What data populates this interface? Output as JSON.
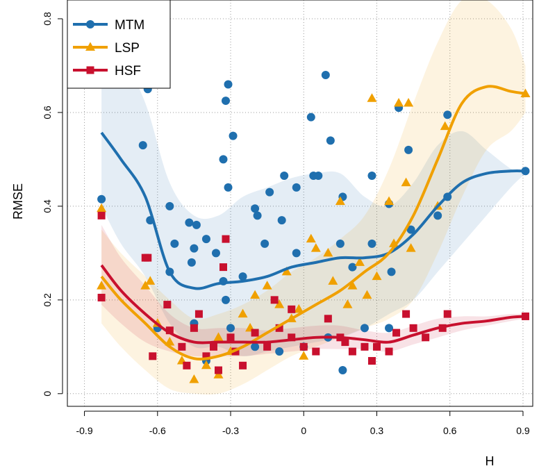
{
  "chart_data": {
    "type": "scatter",
    "x_label": "H",
    "y_label": "RMSE",
    "xlim": [
      -0.97,
      0.94
    ],
    "ylim": [
      -0.027,
      0.84
    ],
    "xticks": [
      -0.9,
      -0.6,
      -0.3,
      0,
      0.3,
      0.6,
      0.9
    ],
    "yticks": [
      0,
      0.2,
      0.4,
      0.6,
      0.8
    ],
    "grid": true,
    "legend": "top-left",
    "series": [
      {
        "name": "MTM",
        "color": "#1f6fae",
        "marker": "circle",
        "x": [
          -0.83,
          -0.66,
          -0.64,
          -0.63,
          -0.6,
          -0.55,
          -0.53,
          -0.55,
          -0.47,
          -0.44,
          -0.45,
          -0.46,
          -0.4,
          -0.36,
          -0.33,
          -0.32,
          -0.31,
          -0.31,
          -0.29,
          -0.33,
          -0.32,
          -0.2,
          -0.19,
          -0.16,
          -0.14,
          -0.08,
          -0.09,
          -0.03,
          0.03,
          0.04,
          0.06,
          0.09,
          0.11,
          0.16,
          0.15,
          0.28,
          0.28,
          0.35,
          0.39,
          0.43,
          0.44,
          0.55,
          0.59,
          0.59,
          0.91,
          -0.45,
          -0.4,
          -0.3,
          -0.2,
          -0.1,
          0.0,
          0.1,
          0.16,
          0.25,
          0.35,
          -0.25,
          0.2,
          -0.03,
          0.36
        ],
        "values": [
          0.415,
          0.53,
          0.65,
          0.37,
          0.14,
          0.4,
          0.32,
          0.26,
          0.365,
          0.36,
          0.31,
          0.28,
          0.33,
          0.3,
          0.5,
          0.625,
          0.66,
          0.44,
          0.55,
          0.24,
          0.2,
          0.395,
          0.38,
          0.32,
          0.43,
          0.465,
          0.37,
          0.44,
          0.59,
          0.465,
          0.465,
          0.68,
          0.54,
          0.42,
          0.32,
          0.465,
          0.32,
          0.405,
          0.61,
          0.52,
          0.35,
          0.38,
          0.595,
          0.42,
          0.475,
          0.15,
          0.07,
          0.14,
          0.1,
          0.09,
          0.1,
          0.12,
          0.05,
          0.14,
          0.14,
          0.25,
          0.27,
          0.3,
          0.26
        ],
        "trend": {
          "x": [
            -0.83,
            -0.75,
            -0.65,
            -0.55,
            -0.45,
            -0.35,
            -0.25,
            -0.15,
            -0.05,
            0.05,
            0.15,
            0.25,
            0.35,
            0.45,
            0.55,
            0.65,
            0.75,
            0.85,
            0.91
          ],
          "values": [
            0.557,
            0.5,
            0.42,
            0.26,
            0.225,
            0.235,
            0.24,
            0.25,
            0.27,
            0.28,
            0.29,
            0.29,
            0.3,
            0.34,
            0.4,
            0.45,
            0.47,
            0.475,
            0.475
          ],
          "lower": [
            0.4,
            0.32,
            0.25,
            0.15,
            0.1,
            0.1,
            0.08,
            0.09,
            0.1,
            0.11,
            0.12,
            0.14,
            0.17,
            0.2,
            0.26,
            0.32,
            0.38,
            0.44,
            0.47
          ],
          "upper": [
            0.75,
            0.72,
            0.62,
            0.45,
            0.38,
            0.38,
            0.42,
            0.44,
            0.46,
            0.47,
            0.47,
            0.42,
            0.4,
            0.45,
            0.53,
            0.56,
            0.52,
            0.48,
            0.47
          ]
        }
      },
      {
        "name": "LSP",
        "color": "#f0a000",
        "marker": "triangle",
        "x": [
          -0.83,
          -0.83,
          -0.65,
          -0.63,
          -0.6,
          -0.55,
          -0.5,
          -0.45,
          -0.4,
          -0.35,
          -0.3,
          -0.25,
          -0.22,
          -0.2,
          -0.15,
          -0.1,
          -0.05,
          -0.07,
          0.0,
          0.03,
          0.05,
          0.1,
          0.12,
          0.15,
          0.2,
          0.23,
          0.28,
          0.3,
          0.35,
          0.37,
          0.39,
          0.42,
          0.43,
          0.44,
          0.55,
          0.58,
          0.91,
          0.26,
          0.18,
          -0.35,
          -0.02
        ],
        "values": [
          0.395,
          0.23,
          0.23,
          0.24,
          0.15,
          0.11,
          0.07,
          0.03,
          0.06,
          0.04,
          0.09,
          0.17,
          0.14,
          0.21,
          0.23,
          0.19,
          0.16,
          0.26,
          0.08,
          0.33,
          0.31,
          0.3,
          0.24,
          0.41,
          0.23,
          0.28,
          0.63,
          0.25,
          0.41,
          0.32,
          0.62,
          0.45,
          0.62,
          0.31,
          0.4,
          0.57,
          0.64,
          0.21,
          0.19,
          0.12,
          0.18
        ],
        "trend": {
          "x": [
            -0.83,
            -0.75,
            -0.65,
            -0.55,
            -0.45,
            -0.35,
            -0.25,
            -0.15,
            -0.05,
            0.05,
            0.15,
            0.25,
            0.35,
            0.45,
            0.55,
            0.65,
            0.75,
            0.85,
            0.91
          ],
          "values": [
            0.25,
            0.2,
            0.15,
            0.1,
            0.075,
            0.08,
            0.1,
            0.13,
            0.16,
            0.19,
            0.22,
            0.26,
            0.3,
            0.38,
            0.5,
            0.62,
            0.655,
            0.645,
            0.64
          ],
          "lower": [
            0.15,
            0.1,
            0.05,
            0.01,
            0.0,
            0.0,
            0.02,
            0.05,
            0.08,
            0.1,
            0.12,
            0.14,
            0.16,
            0.2,
            0.3,
            0.42,
            0.52,
            0.56,
            0.6
          ],
          "upper": [
            0.35,
            0.3,
            0.25,
            0.2,
            0.16,
            0.17,
            0.19,
            0.22,
            0.26,
            0.29,
            0.33,
            0.38,
            0.48,
            0.62,
            0.75,
            0.84,
            0.84,
            0.78,
            0.7
          ]
        }
      },
      {
        "name": "HSF",
        "color": "#c8102e",
        "marker": "square",
        "x": [
          -0.83,
          -0.83,
          -0.65,
          -0.64,
          -0.62,
          -0.56,
          -0.55,
          -0.5,
          -0.48,
          -0.45,
          -0.43,
          -0.4,
          -0.37,
          -0.35,
          -0.33,
          -0.32,
          -0.3,
          -0.28,
          -0.25,
          -0.2,
          -0.15,
          -0.1,
          -0.05,
          0.0,
          0.05,
          0.1,
          0.15,
          0.17,
          0.2,
          0.25,
          0.3,
          0.35,
          0.38,
          0.42,
          0.45,
          0.5,
          0.57,
          0.59,
          0.91,
          -0.05,
          -0.12,
          0.28
        ],
        "values": [
          0.38,
          0.205,
          0.29,
          0.29,
          0.08,
          0.19,
          0.135,
          0.1,
          0.06,
          0.14,
          0.17,
          0.08,
          0.1,
          0.05,
          0.27,
          0.33,
          0.12,
          0.09,
          0.06,
          0.13,
          0.1,
          0.14,
          0.12,
          0.1,
          0.09,
          0.16,
          0.12,
          0.11,
          0.09,
          0.1,
          0.1,
          0.09,
          0.13,
          0.17,
          0.14,
          0.12,
          0.14,
          0.17,
          0.165,
          0.18,
          0.2,
          0.07
        ],
        "trend": {
          "x": [
            -0.83,
            -0.75,
            -0.65,
            -0.55,
            -0.45,
            -0.35,
            -0.25,
            -0.15,
            -0.05,
            0.05,
            0.15,
            0.25,
            0.35,
            0.45,
            0.55,
            0.65,
            0.75,
            0.85,
            0.91
          ],
          "values": [
            0.274,
            0.22,
            0.17,
            0.13,
            0.11,
            0.11,
            0.11,
            0.11,
            0.115,
            0.12,
            0.12,
            0.115,
            0.11,
            0.125,
            0.14,
            0.15,
            0.155,
            0.163,
            0.165
          ],
          "lower": [
            0.19,
            0.15,
            0.11,
            0.09,
            0.08,
            0.08,
            0.08,
            0.085,
            0.09,
            0.095,
            0.095,
            0.095,
            0.09,
            0.105,
            0.12,
            0.135,
            0.145,
            0.155,
            0.16
          ],
          "upper": [
            0.36,
            0.29,
            0.23,
            0.17,
            0.14,
            0.14,
            0.14,
            0.135,
            0.14,
            0.145,
            0.145,
            0.135,
            0.13,
            0.145,
            0.16,
            0.165,
            0.165,
            0.17,
            0.17
          ]
        }
      }
    ]
  }
}
